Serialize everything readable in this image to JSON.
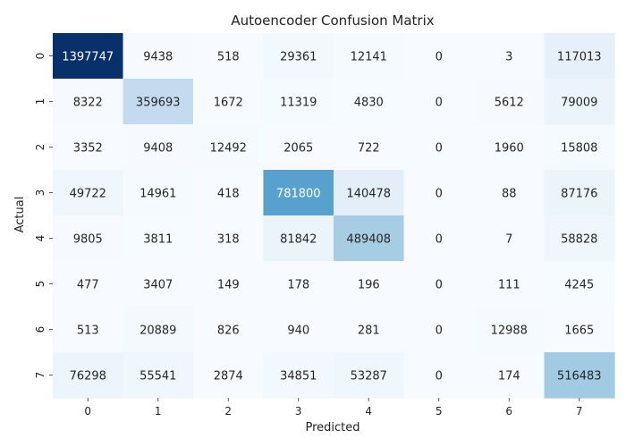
{
  "chart_data": {
    "type": "heatmap",
    "title": "Autoencoder Confusion Matrix",
    "xlabel": "Predicted",
    "ylabel": "Actual",
    "x_categories": [
      "0",
      "1",
      "2",
      "3",
      "4",
      "5",
      "6",
      "7"
    ],
    "y_categories": [
      "0",
      "1",
      "2",
      "3",
      "4",
      "5",
      "6",
      "7"
    ],
    "colormap": "Blues",
    "colorbar": false,
    "values": [
      [
        1397747,
        9438,
        518,
        29361,
        12141,
        0,
        3,
        117013
      ],
      [
        8322,
        359693,
        1672,
        11319,
        4830,
        0,
        5612,
        79009
      ],
      [
        3352,
        9408,
        12492,
        2065,
        722,
        0,
        1960,
        15808
      ],
      [
        49722,
        14961,
        418,
        781800,
        140478,
        0,
        88,
        87176
      ],
      [
        9805,
        3811,
        318,
        81842,
        489408,
        0,
        7,
        58828
      ],
      [
        477,
        3407,
        149,
        178,
        196,
        0,
        111,
        4245
      ],
      [
        513,
        20889,
        826,
        940,
        281,
        0,
        12988,
        1665
      ],
      [
        76298,
        55541,
        2874,
        34851,
        53287,
        0,
        174,
        516483
      ]
    ]
  }
}
